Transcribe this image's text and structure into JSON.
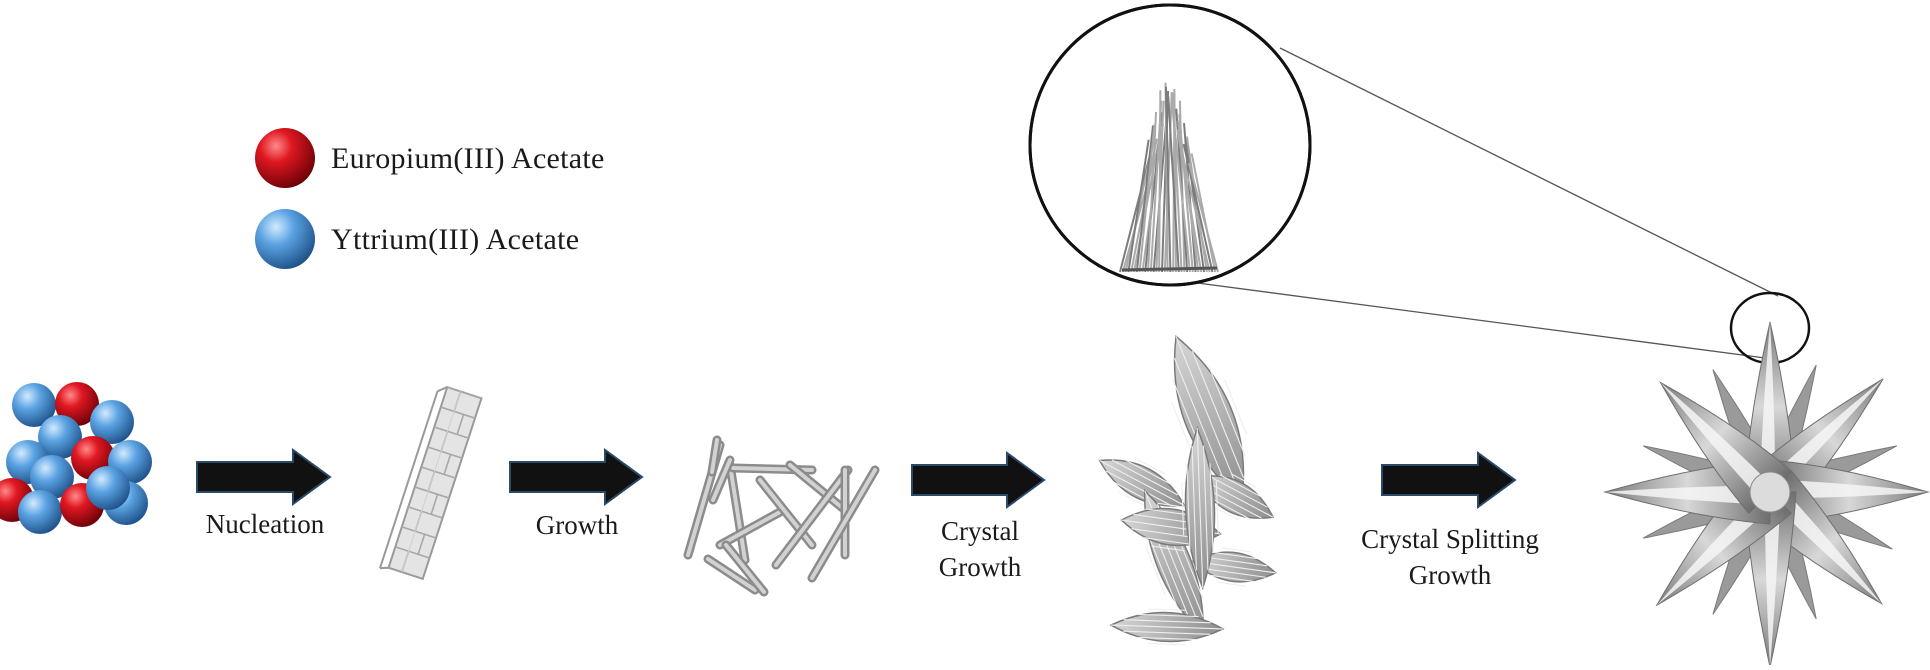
{
  "legend": {
    "items": [
      {
        "label": "Europium(III) Acetate",
        "color": "#c8101a"
      },
      {
        "label": "Yttrium(III) Acetate",
        "color": "#4f95d6"
      }
    ]
  },
  "steps": [
    {
      "label": "Nucleation"
    },
    {
      "label": "Growth"
    },
    {
      "label_line1": "Crystal",
      "label_line2": "Growth"
    },
    {
      "label_line1": "Crystal Splitting",
      "label_line2": "Growth"
    }
  ],
  "colors": {
    "arrow": "#111111",
    "arrow_outline": "#2a4a6a",
    "crystal": "#c4c4c4",
    "crystal_dark": "#8c8c8c",
    "europium": "#c8101a",
    "yttrium": "#4f95d6"
  }
}
